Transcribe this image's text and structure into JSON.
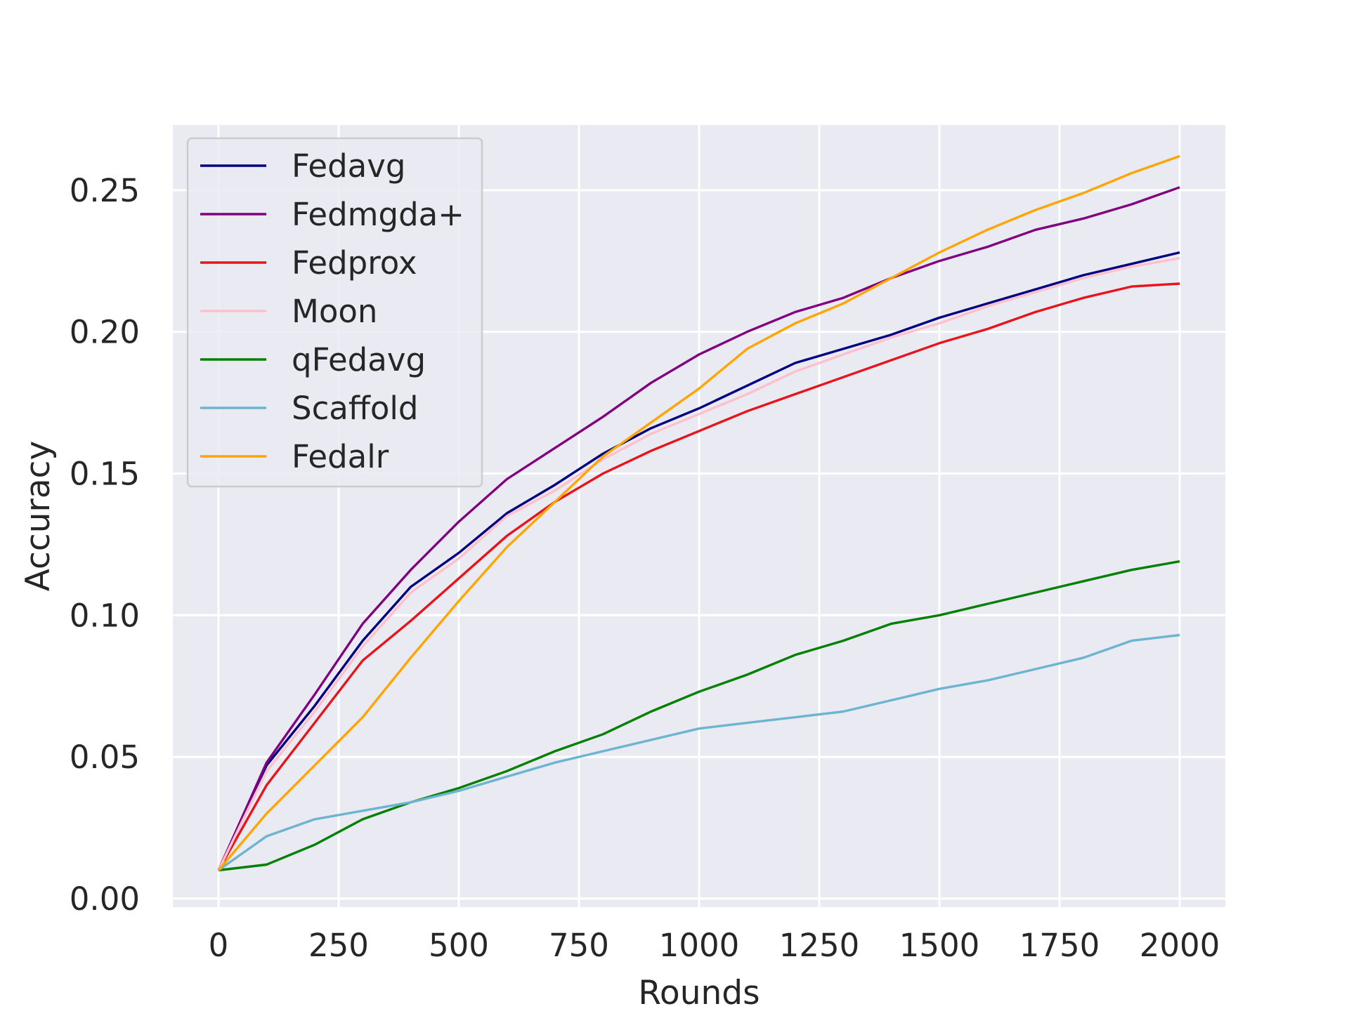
{
  "chart_data": {
    "type": "line",
    "title": "",
    "xlabel": "Rounds",
    "ylabel": "Accuracy",
    "xlim": [
      -95,
      2095
    ],
    "ylim": [
      -0.003,
      0.273
    ],
    "xticks": [
      0,
      250,
      500,
      750,
      1000,
      1250,
      1500,
      1750,
      2000
    ],
    "xtick_labels": [
      "0",
      "250",
      "500",
      "750",
      "1000",
      "1250",
      "1500",
      "1750",
      "2000"
    ],
    "yticks": [
      0.0,
      0.05,
      0.1,
      0.15,
      0.2,
      0.25
    ],
    "ytick_labels": [
      "0.00",
      "0.05",
      "0.10",
      "0.15",
      "0.20",
      "0.25"
    ],
    "grid": true,
    "legend_position": "top-left",
    "x": [
      0,
      100,
      200,
      300,
      400,
      500,
      600,
      700,
      800,
      900,
      1000,
      1100,
      1200,
      1300,
      1400,
      1500,
      1600,
      1700,
      1800,
      1900,
      2000
    ],
    "series": [
      {
        "name": "Fedavg",
        "color": "#000080",
        "values": [
          0.01,
          0.047,
          0.068,
          0.091,
          0.11,
          0.122,
          0.136,
          0.146,
          0.157,
          0.166,
          0.173,
          0.181,
          0.189,
          0.194,
          0.199,
          0.205,
          0.21,
          0.215,
          0.22,
          0.224,
          0.228
        ]
      },
      {
        "name": "Fedmgda+",
        "color": "#800080",
        "values": [
          0.01,
          0.048,
          0.072,
          0.097,
          0.116,
          0.133,
          0.148,
          0.159,
          0.17,
          0.182,
          0.192,
          0.2,
          0.207,
          0.212,
          0.219,
          0.225,
          0.23,
          0.236,
          0.24,
          0.245,
          0.251
        ]
      },
      {
        "name": "Fedprox",
        "color": "#e8141c",
        "values": [
          0.01,
          0.04,
          0.062,
          0.084,
          0.098,
          0.113,
          0.128,
          0.14,
          0.15,
          0.158,
          0.165,
          0.172,
          0.178,
          0.184,
          0.19,
          0.196,
          0.201,
          0.207,
          0.212,
          0.216,
          0.217
        ]
      },
      {
        "name": "Moon",
        "color": "#ffc0cb",
        "values": [
          0.01,
          0.045,
          0.066,
          0.089,
          0.108,
          0.12,
          0.135,
          0.144,
          0.155,
          0.164,
          0.171,
          0.178,
          0.186,
          0.192,
          0.198,
          0.203,
          0.209,
          0.214,
          0.219,
          0.223,
          0.226
        ]
      },
      {
        "name": "qFedavg",
        "color": "#008000",
        "values": [
          0.01,
          0.012,
          0.019,
          0.028,
          0.034,
          0.039,
          0.045,
          0.052,
          0.058,
          0.066,
          0.073,
          0.079,
          0.086,
          0.091,
          0.097,
          0.1,
          0.104,
          0.108,
          0.112,
          0.116,
          0.119
        ]
      },
      {
        "name": "Scaffold",
        "color": "#6cb4d0",
        "values": [
          0.01,
          0.022,
          0.028,
          0.031,
          0.034,
          0.038,
          0.043,
          0.048,
          0.052,
          0.056,
          0.06,
          0.062,
          0.064,
          0.066,
          0.07,
          0.074,
          0.077,
          0.081,
          0.085,
          0.091,
          0.093
        ]
      },
      {
        "name": "Fedalr",
        "color": "#ffa500",
        "values": [
          0.01,
          0.03,
          0.047,
          0.064,
          0.085,
          0.105,
          0.124,
          0.14,
          0.156,
          0.168,
          0.18,
          0.194,
          0.203,
          0.21,
          0.219,
          0.228,
          0.236,
          0.243,
          0.249,
          0.256,
          0.262
        ]
      }
    ]
  }
}
